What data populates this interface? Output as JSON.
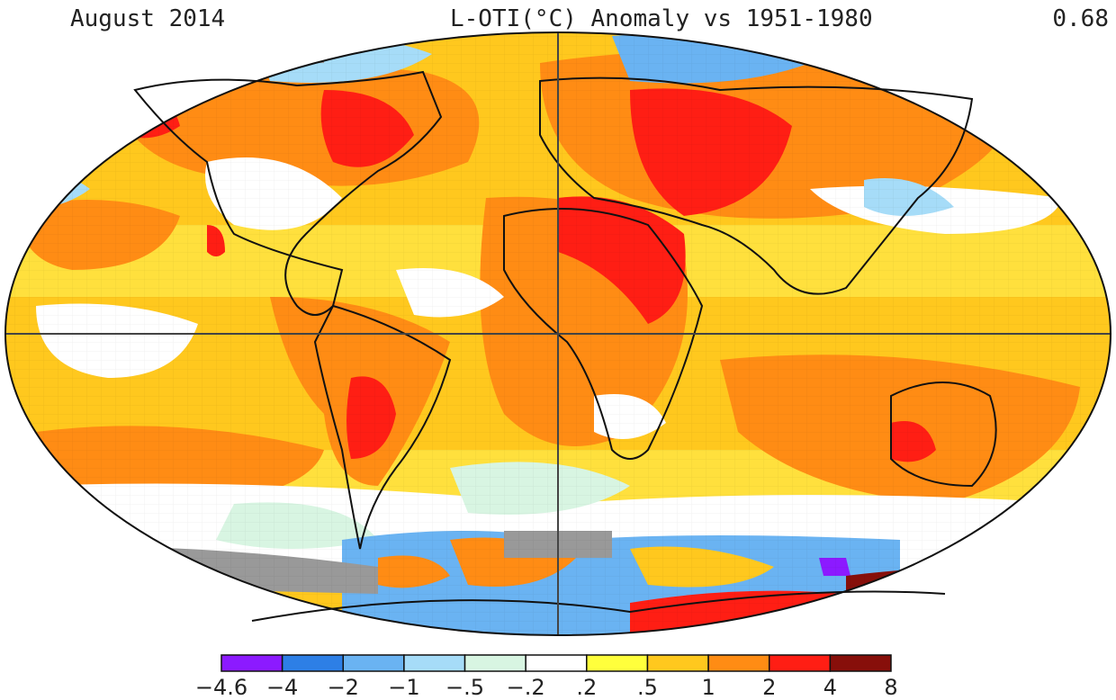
{
  "header": {
    "date": "August 2014",
    "title": "L-OTI(°C) Anomaly vs 1951-1980",
    "global_mean": "0.68"
  },
  "legend": {
    "bins": [
      {
        "color": "#8c1aff"
      },
      {
        "color": "#2d7fe6"
      },
      {
        "color": "#6ab3f2"
      },
      {
        "color": "#a6dcf8"
      },
      {
        "color": "#d8f5e2"
      },
      {
        "color": "#ffffff"
      },
      {
        "color": "#ffff3c"
      },
      {
        "color": "#ffc81e"
      },
      {
        "color": "#ff8c14"
      },
      {
        "color": "#ff1e14"
      },
      {
        "color": "#870f0a"
      }
    ],
    "ticks": [
      "−4.6",
      "−4",
      "−2",
      "−1",
      "−.5",
      "−.2",
      ".2",
      ".5",
      "1",
      "2",
      "4",
      "8"
    ]
  },
  "map": {
    "projection": "Robinson-like ellipse",
    "grid_lines": [
      "equator",
      "prime-meridian"
    ],
    "missing_data_color": "#999999",
    "regions": [
      {
        "name": "north-america-east",
        "category": "2-4"
      },
      {
        "name": "south-america-central",
        "category": "2-4"
      },
      {
        "name": "north-africa",
        "category": "2-4"
      },
      {
        "name": "russia-west",
        "category": "2-4"
      },
      {
        "name": "australia-west",
        "category": "2-4"
      },
      {
        "name": "antarctica-west",
        "category": "4-8"
      },
      {
        "name": "southern-ocean",
        "category": "-2--1"
      },
      {
        "name": "equatorial-pacific",
        "category": "-.2-.2"
      }
    ]
  }
}
